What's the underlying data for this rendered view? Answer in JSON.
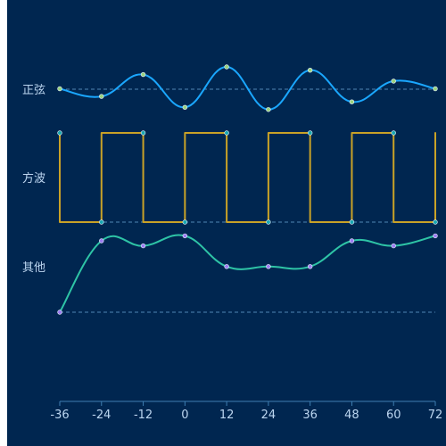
{
  "colors": {
    "background": "#002650",
    "label_text": "#bcd6f0",
    "axis_line": "#3f7fb2",
    "baseline": "#4f86b5"
  },
  "chart_data": {
    "type": "line",
    "xlim": [
      -36,
      72
    ],
    "x_ticks": [
      -36,
      -24,
      -12,
      0,
      12,
      24,
      36,
      48,
      60,
      72
    ],
    "tick_labels": [
      "-36",
      "-24",
      "-12",
      "0",
      "12",
      "24",
      "36",
      "48",
      "60",
      "72"
    ],
    "x": [
      -36,
      -24,
      -12,
      0,
      12,
      24,
      36,
      48,
      60,
      72
    ],
    "series": [
      {
        "name": "正弦",
        "smooth": true,
        "color": "#1aa7ff",
        "marker_fill": "#9ad27e",
        "values": [
          0,
          -0.35,
          0.65,
          -0.85,
          1.0,
          -0.95,
          0.85,
          -0.6,
          0.35,
          0
        ],
        "ylim": [
          -1,
          1
        ]
      },
      {
        "name": "方波",
        "step": true,
        "color": "#c9a227",
        "marker_fill": "#1aa7b2",
        "values": [
          1,
          0,
          1,
          0,
          1,
          0,
          1,
          0,
          1,
          0
        ],
        "ylim": [
          0,
          1
        ]
      },
      {
        "name": "其他",
        "smooth": true,
        "color": "#2ec4a6",
        "marker_fill": "#9c7cf0",
        "values": [
          0,
          1,
          0.93,
          1.07,
          0.64,
          0.64,
          0.64,
          1,
          0.93,
          1.07
        ],
        "ylim": [
          0,
          1
        ]
      }
    ]
  }
}
